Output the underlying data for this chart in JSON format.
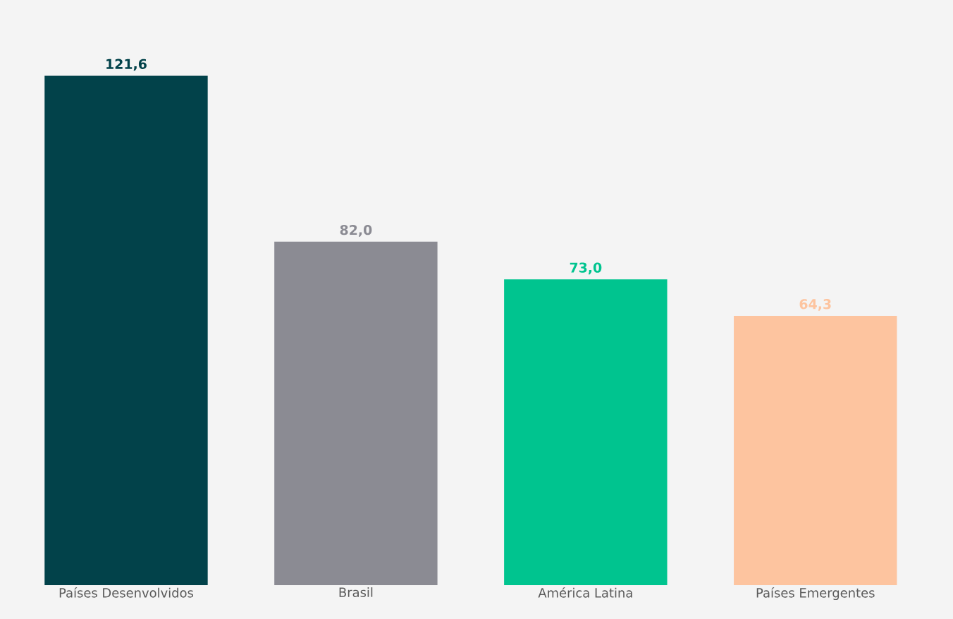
{
  "chart_data": {
    "type": "bar",
    "categories": [
      "Países Desenvolvidos",
      "Brasil",
      "América Latina",
      "Países Emergentes"
    ],
    "values": [
      121.6,
      82.0,
      73.0,
      64.3
    ],
    "colors": [
      "#02424a",
      "#8b8b93",
      "#00c48f",
      "#fdc49f"
    ],
    "value_labels": [
      "121,6",
      "82,0",
      "73,0",
      "64,3"
    ]
  }
}
